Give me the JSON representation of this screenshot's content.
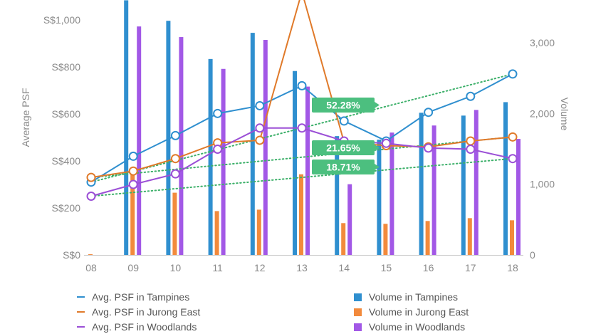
{
  "chart_data": {
    "type": "bar",
    "categories": [
      "08",
      "09",
      "10",
      "11",
      "12",
      "13",
      "14",
      "15",
      "16",
      "17",
      "18"
    ],
    "y_left": {
      "label": "Average PSF",
      "ticks": [
        "S$0",
        "S$200",
        "S$400",
        "S$600",
        "S$800",
        "S$1,000"
      ],
      "range": [
        0,
        1000
      ]
    },
    "y_right": {
      "label": "Volume",
      "ticks": [
        "0",
        "1,000",
        "2,000",
        "3,000"
      ],
      "range": [
        0,
        3000
      ]
    },
    "line_series": [
      {
        "name": "Avg. PSF in Tampines",
        "color": "#2f8fcf",
        "values": [
          310,
          420,
          508,
          602,
          635,
          720,
          570,
          485,
          607,
          675,
          770
        ]
      },
      {
        "name": "Avg. PSF in Jurong East",
        "color": "#e07a2a",
        "values": [
          330,
          357,
          410,
          477,
          488,
          1120,
          480,
          465,
          460,
          485,
          502
        ]
      },
      {
        "name": "Avg. PSF in Woodlands",
        "color": "#9b4fd6",
        "values": [
          250,
          300,
          345,
          450,
          540,
          540,
          485,
          475,
          455,
          450,
          410
        ]
      }
    ],
    "bar_series": [
      {
        "name": "Volume in Tampines",
        "color": "#2f8fcf",
        "values": [
          0,
          3600,
          3310,
          2770,
          3140,
          2600,
          1680,
          1630,
          2010,
          1970,
          2160
        ]
      },
      {
        "name": "Volume in Jurong East",
        "color": "#f28a3c",
        "values": [
          10,
          1200,
          880,
          620,
          640,
          1140,
          450,
          440,
          480,
          520,
          490
        ]
      },
      {
        "name": "Volume in Woodlands",
        "color": "#a258e6",
        "values": [
          0,
          3230,
          3080,
          2630,
          3040,
          2380,
          1000,
          1730,
          1830,
          2050,
          1640
        ]
      }
    ],
    "trendlines": [
      {
        "series": "Avg. PSF in Tampines",
        "label": "52.28%",
        "from": [
          310,
          "08"
        ],
        "to": [
          770,
          "18"
        ]
      },
      {
        "series": "Avg. PSF in Jurong East",
        "label": "21.65%",
        "from": [
          330,
          "08"
        ],
        "to": [
          502,
          "18"
        ]
      },
      {
        "series": "Avg. PSF in Woodlands",
        "label": "18.71%",
        "from": [
          250,
          "08"
        ],
        "to": [
          410,
          "18"
        ]
      }
    ],
    "callout_color": "#4cbf7f",
    "trend_color": "#3db06a",
    "legend_placement": "bottom",
    "grid": false
  },
  "legend": {
    "left": [
      "Avg. PSF in Tampines",
      "Avg. PSF in Jurong East",
      "Avg. PSF in Woodlands"
    ],
    "right": [
      "Volume in Tampines",
      "Volume in Jurong East",
      "Volume in Woodlands"
    ]
  }
}
